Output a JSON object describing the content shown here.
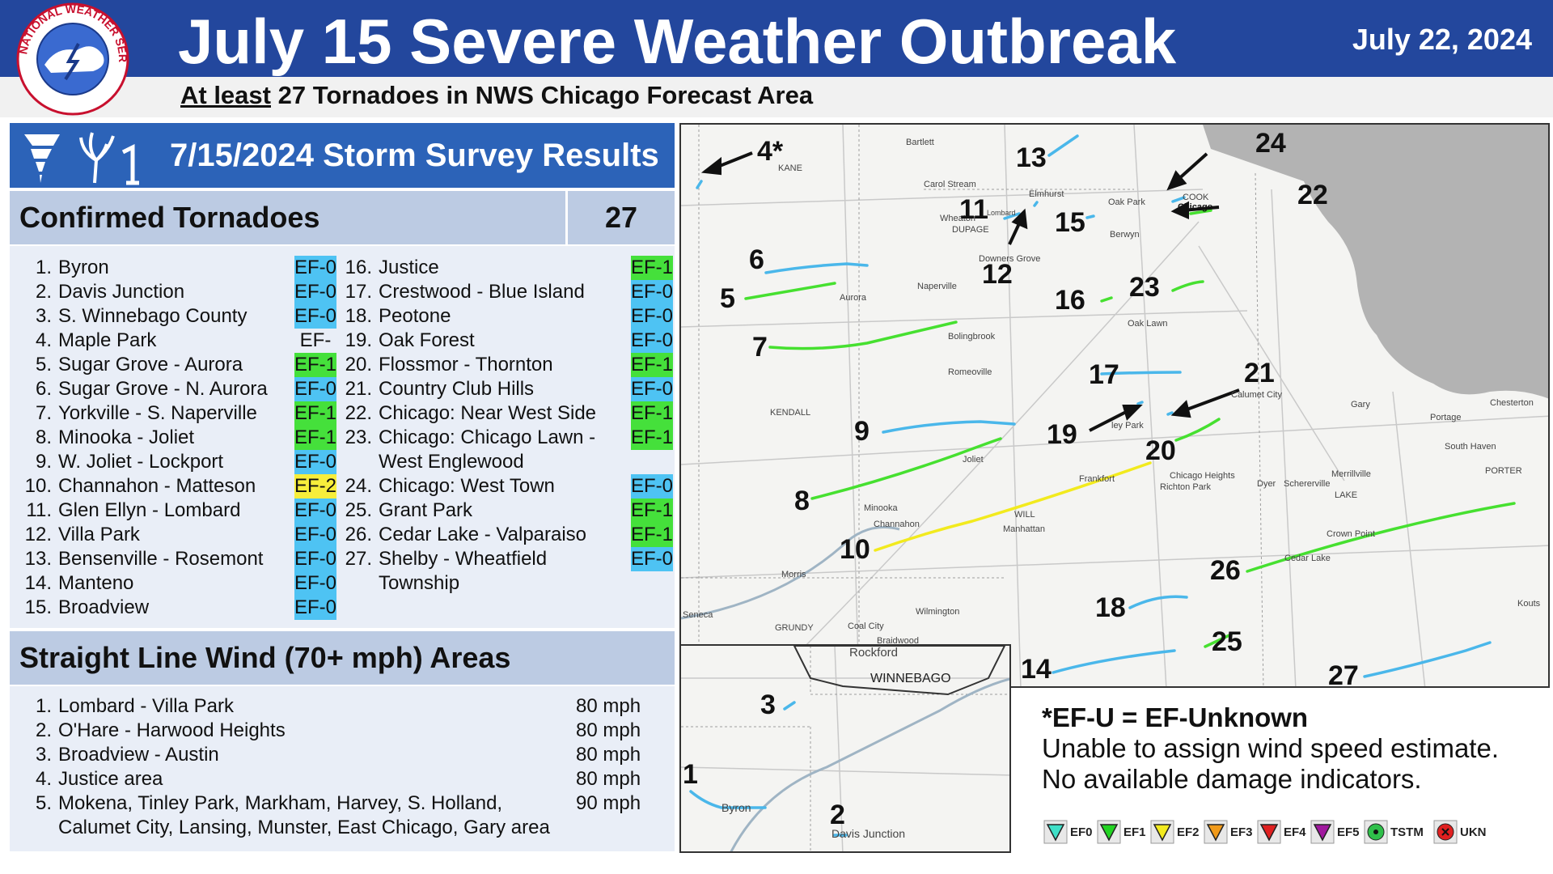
{
  "header": {
    "title": "July 15 Severe Weather Outbreak",
    "date": "July 22, 2024",
    "subtitle_prefix": "At least",
    "subtitle_rest": " 27 Tornadoes in NWS Chicago Forecast Area",
    "logo_text": "NATIONAL WEATHER SERVICE"
  },
  "survey": {
    "title": "7/15/2024 Storm Survey Results",
    "tornado_heading": "Confirmed Tornadoes",
    "tornado_count": "27",
    "tornadoes": [
      {
        "n": "1.",
        "name": "Byron",
        "rating": "EF-0"
      },
      {
        "n": "2.",
        "name": "Davis Junction",
        "rating": "EF-0"
      },
      {
        "n": "3.",
        "name": "S. Winnebago County",
        "rating": "EF-0"
      },
      {
        "n": "4.",
        "name": "Maple Park",
        "rating": "EF-U"
      },
      {
        "n": "5.",
        "name": "Sugar Grove - Aurora",
        "rating": "EF-1"
      },
      {
        "n": "6.",
        "name": "Sugar Grove - N. Aurora",
        "rating": "EF-0"
      },
      {
        "n": "7.",
        "name": "Yorkville - S. Naperville",
        "rating": "EF-1"
      },
      {
        "n": "8.",
        "name": "Minooka - Joliet",
        "rating": "EF-1"
      },
      {
        "n": "9.",
        "name": "W. Joliet - Lockport",
        "rating": "EF-0"
      },
      {
        "n": "10.",
        "name": "Channahon - Matteson",
        "rating": "EF-2"
      },
      {
        "n": "11.",
        "name": "Glen Ellyn - Lombard",
        "rating": "EF-0"
      },
      {
        "n": "12.",
        "name": "Villa Park",
        "rating": "EF-0"
      },
      {
        "n": "13.",
        "name": "Bensenville - Rosemont",
        "rating": "EF-0"
      },
      {
        "n": "14.",
        "name": "Manteno",
        "rating": "EF-0"
      },
      {
        "n": "15.",
        "name": "Broadview",
        "rating": "EF-0"
      },
      {
        "n": "16.",
        "name": "Justice",
        "rating": "EF-1"
      },
      {
        "n": "17.",
        "name": "Crestwood - Blue Island",
        "rating": "EF-0"
      },
      {
        "n": "18.",
        "name": "Peotone",
        "rating": "EF-0"
      },
      {
        "n": "19.",
        "name": "Oak Forest",
        "rating": "EF-0"
      },
      {
        "n": "20.",
        "name": "Flossmor - Thornton",
        "rating": "EF-1"
      },
      {
        "n": "21.",
        "name": "Country Club Hills",
        "rating": "EF-0"
      },
      {
        "n": "22.",
        "name": "Chicago: Near West Side",
        "rating": "EF-1"
      },
      {
        "n": "23.",
        "name": "Chicago: Chicago Lawn -",
        "name2": "West Englewood",
        "rating": "EF-1"
      },
      {
        "n": "24.",
        "name": "Chicago: West Town",
        "rating": "EF-0"
      },
      {
        "n": "25.",
        "name": "Grant Park",
        "rating": "EF-1"
      },
      {
        "n": "26.",
        "name": "Cedar Lake - Valparaiso",
        "rating": "EF-1"
      },
      {
        "n": "27.",
        "name": "Shelby - Wheatfield",
        "name2": "Township",
        "rating": "EF-0"
      }
    ],
    "wind_heading": "Straight Line Wind (70+ mph) Areas",
    "wind_areas": [
      {
        "n": "1.",
        "name": "Lombard - Villa Park",
        "speed": "80 mph"
      },
      {
        "n": "2.",
        "name": "O'Hare - Harwood Heights",
        "speed": "80 mph"
      },
      {
        "n": "3.",
        "name": "Broadview - Austin",
        "speed": "80 mph"
      },
      {
        "n": "4.",
        "name": "Justice area",
        "speed": "80 mph"
      },
      {
        "n": "5.",
        "name": "Mokena, Tinley Park, Markham, Harvey, S. Holland,",
        "name2": "Calumet City, Lansing, Munster, East Chicago, Gary area",
        "speed": "90 mph"
      }
    ]
  },
  "map": {
    "place_labels": [
      "Bartlett",
      "Carol Stream",
      "Elmhurst",
      "Lombard",
      "Wheaton",
      "DUPAGE",
      "KANE",
      "COOK",
      "Chicago",
      "Oak Park",
      "Berwyn",
      "Downers Grove",
      "Naperville",
      "Aurora",
      "Bolingbrook",
      "Oak Lawn",
      "Romeoville",
      "KENDALL",
      "Joliet",
      "Calumet City",
      "Gary",
      "Chesterton",
      "Portage",
      "South Haven",
      "PORTER",
      "Merrillville",
      "LAKE",
      "Dyer",
      "Schererville",
      "Chicago Heights",
      "Richton Park",
      "Frankfort",
      "Minooka",
      "Channahon",
      "WILL",
      "Manhattan",
      "Crown Point",
      "Cedar Lake",
      "Morris",
      "Seneca",
      "GRUNDY",
      "Coal City",
      "Braidwood",
      "Wilmington",
      "Kouts",
      "ley Park"
    ],
    "tornado_labels": [
      "4*",
      "13",
      "24",
      "22",
      "11",
      "15",
      "12",
      "6",
      "5",
      "16",
      "23",
      "7",
      "17",
      "21",
      "9",
      "19",
      "20",
      "8",
      "10",
      "26",
      "18",
      "25",
      "14",
      "27"
    ],
    "inset_labels": [
      "Rockford",
      "WINNEBAGO",
      "Byron",
      "Davis Junction"
    ],
    "inset_tornado_labels": [
      "3",
      "1",
      "2"
    ]
  },
  "note": {
    "line1": "*EF-U = EF-Unknown",
    "line2": "Unable to assign wind speed estimate.",
    "line3": "No available damage indicators."
  },
  "legend": {
    "items": [
      "EF0",
      "EF1",
      "EF2",
      "EF3",
      "EF4",
      "EF5",
      "TSTM",
      "UKN"
    ],
    "colors": [
      "#3fe0c8",
      "#22d422",
      "#f2ea1e",
      "#f09a1a",
      "#e02020",
      "#a0189e",
      "#2fbf4a",
      "#e02020"
    ]
  },
  "colors": {
    "header": "#23479d",
    "ef0": "#4ec3f3",
    "ef1": "#45e03b",
    "ef2": "#f7ee3b"
  }
}
